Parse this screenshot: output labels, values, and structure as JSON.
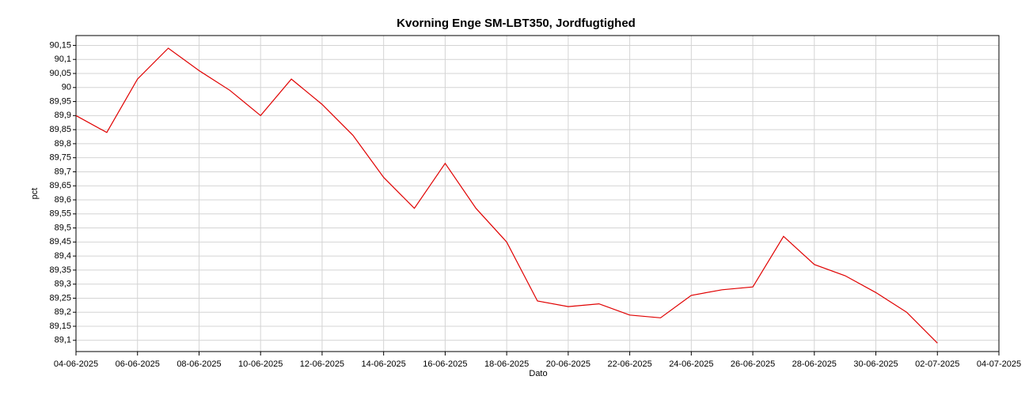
{
  "chart_data": {
    "type": "line",
    "title": "Kvorning Enge SM-LBT350, Jordfugtighed",
    "xlabel": "Dato",
    "ylabel": "pct",
    "color": "#e00000",
    "grid": true,
    "x": [
      "04-06-2025",
      "05-06-2025",
      "06-06-2025",
      "07-06-2025",
      "08-06-2025",
      "09-06-2025",
      "10-06-2025",
      "11-06-2025",
      "12-06-2025",
      "13-06-2025",
      "14-06-2025",
      "15-06-2025",
      "16-06-2025",
      "17-06-2025",
      "18-06-2025",
      "19-06-2025",
      "20-06-2025",
      "21-06-2025",
      "22-06-2025",
      "23-06-2025",
      "24-06-2025",
      "25-06-2025",
      "26-06-2025",
      "27-06-2025",
      "28-06-2025",
      "29-06-2025",
      "30-06-2025",
      "01-07-2025",
      "02-07-2025"
    ],
    "values": [
      89.9,
      89.84,
      90.03,
      90.14,
      90.06,
      89.99,
      89.9,
      90.03,
      89.94,
      89.83,
      89.68,
      89.57,
      89.73,
      89.57,
      89.45,
      89.24,
      89.22,
      89.23,
      89.19,
      89.18,
      89.26,
      89.28,
      89.29,
      89.47,
      89.37,
      89.33,
      89.27,
      89.2,
      89.09
    ],
    "xlim": [
      "04-06-2025",
      "04-07-2025"
    ],
    "xticks": [
      "04-06-2025",
      "06-06-2025",
      "08-06-2025",
      "10-06-2025",
      "12-06-2025",
      "14-06-2025",
      "16-06-2025",
      "18-06-2025",
      "20-06-2025",
      "22-06-2025",
      "24-06-2025",
      "26-06-2025",
      "28-06-2025",
      "30-06-2025",
      "02-07-2025",
      "04-07-2025"
    ],
    "ylim": [
      89.06,
      90.185
    ],
    "yticks": [
      {
        "value": 89.1,
        "label": "89,1"
      },
      {
        "value": 89.15,
        "label": "89,15"
      },
      {
        "value": 89.2,
        "label": "89,2"
      },
      {
        "value": 89.25,
        "label": "89,25"
      },
      {
        "value": 89.3,
        "label": "89,3"
      },
      {
        "value": 89.35,
        "label": "89,35"
      },
      {
        "value": 89.4,
        "label": "89,4"
      },
      {
        "value": 89.45,
        "label": "89,45"
      },
      {
        "value": 89.5,
        "label": "89,5"
      },
      {
        "value": 89.55,
        "label": "89,55"
      },
      {
        "value": 89.6,
        "label": "89,6"
      },
      {
        "value": 89.65,
        "label": "89,65"
      },
      {
        "value": 89.7,
        "label": "89,7"
      },
      {
        "value": 89.75,
        "label": "89,75"
      },
      {
        "value": 89.8,
        "label": "89,8"
      },
      {
        "value": 89.85,
        "label": "89,85"
      },
      {
        "value": 89.9,
        "label": "89,9"
      },
      {
        "value": 89.95,
        "label": "89,95"
      },
      {
        "value": 90,
        "label": "90"
      },
      {
        "value": 90.05,
        "label": "90,05"
      },
      {
        "value": 90.1,
        "label": "90,1"
      },
      {
        "value": 90.15,
        "label": "90,15"
      }
    ]
  }
}
